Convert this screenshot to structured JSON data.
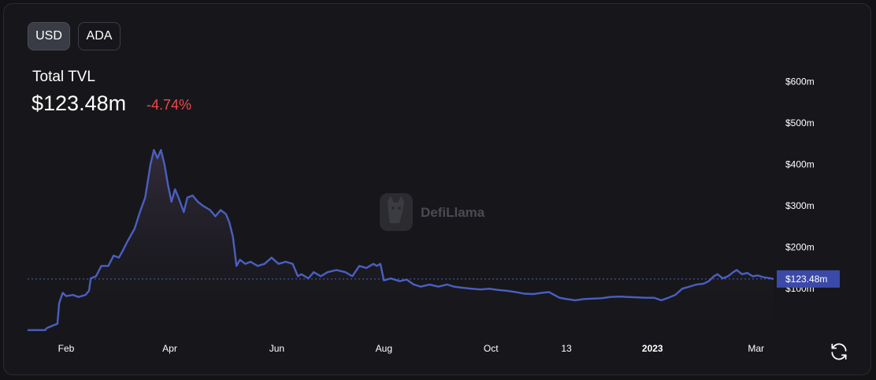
{
  "currency_toggle": {
    "options": [
      "USD",
      "ADA"
    ],
    "active": "USD"
  },
  "summary": {
    "label": "Total TVL",
    "value": "$123.48m",
    "change": "-4.74%"
  },
  "watermark": "DefiLlama",
  "colors": {
    "background": "#17171b",
    "line": "#4a5fc1",
    "negative": "#f04747",
    "price_tag": "#3b4aa8",
    "text": "#ffffff"
  },
  "icons": {
    "refresh": "refresh-icon",
    "logo": "defillama-logo-icon"
  },
  "chart_data": {
    "type": "area",
    "title": "Total TVL",
    "ylabel": "",
    "xlabel": "",
    "y_ticks": [
      {
        "value": 100,
        "label": "$100m"
      },
      {
        "value": 200,
        "label": "$200m"
      },
      {
        "value": 300,
        "label": "$300m"
      },
      {
        "value": 400,
        "label": "$400m"
      },
      {
        "value": 500,
        "label": "$500m"
      },
      {
        "value": 600,
        "label": "$600m"
      }
    ],
    "x_ticks": [
      {
        "date": "2022-02-01",
        "label": "Feb",
        "bold": false
      },
      {
        "date": "2022-04-01",
        "label": "Apr",
        "bold": false
      },
      {
        "date": "2022-06-01",
        "label": "Jun",
        "bold": false
      },
      {
        "date": "2022-08-01",
        "label": "Aug",
        "bold": false
      },
      {
        "date": "2022-10-01",
        "label": "Oct",
        "bold": false
      },
      {
        "date": "2022-11-13",
        "label": "13",
        "bold": false
      },
      {
        "date": "2023-01-01",
        "label": "2023",
        "bold": true
      },
      {
        "date": "2023-03-01",
        "label": "Mar",
        "bold": false
      }
    ],
    "xlim": [
      "2022-01-10",
      "2023-03-11"
    ],
    "ylim": [
      -12,
      683
    ],
    "current_value": {
      "value": 123.48,
      "label": "$123.48m"
    },
    "grid": false,
    "series": [
      {
        "points": [
          [
            "2022-01-10",
            0
          ],
          [
            "2022-01-20",
            0
          ],
          [
            "2022-01-21",
            5
          ],
          [
            "2022-01-25",
            12
          ],
          [
            "2022-01-27",
            15
          ],
          [
            "2022-01-28",
            65
          ],
          [
            "2022-01-30",
            90
          ],
          [
            "2022-02-01",
            82
          ],
          [
            "2022-02-05",
            85
          ],
          [
            "2022-02-08",
            80
          ],
          [
            "2022-02-12",
            85
          ],
          [
            "2022-02-14",
            95
          ],
          [
            "2022-02-15",
            125
          ],
          [
            "2022-02-18",
            130
          ],
          [
            "2022-02-21",
            155
          ],
          [
            "2022-02-25",
            155
          ],
          [
            "2022-02-28",
            180
          ],
          [
            "2022-03-03",
            175
          ],
          [
            "2022-03-05",
            190
          ],
          [
            "2022-03-08",
            215
          ],
          [
            "2022-03-12",
            245
          ],
          [
            "2022-03-15",
            285
          ],
          [
            "2022-03-18",
            320
          ],
          [
            "2022-03-21",
            400
          ],
          [
            "2022-03-23",
            435
          ],
          [
            "2022-03-25",
            415
          ],
          [
            "2022-03-27",
            435
          ],
          [
            "2022-03-29",
            400
          ],
          [
            "2022-03-31",
            350
          ],
          [
            "2022-04-02",
            310
          ],
          [
            "2022-04-04",
            340
          ],
          [
            "2022-04-06",
            320
          ],
          [
            "2022-04-09",
            285
          ],
          [
            "2022-04-11",
            320
          ],
          [
            "2022-04-14",
            325
          ],
          [
            "2022-04-17",
            310
          ],
          [
            "2022-04-20",
            300
          ],
          [
            "2022-04-24",
            290
          ],
          [
            "2022-04-27",
            275
          ],
          [
            "2022-04-30",
            290
          ],
          [
            "2022-05-03",
            280
          ],
          [
            "2022-05-05",
            260
          ],
          [
            "2022-05-07",
            225
          ],
          [
            "2022-05-09",
            155
          ],
          [
            "2022-05-11",
            170
          ],
          [
            "2022-05-14",
            160
          ],
          [
            "2022-05-17",
            165
          ],
          [
            "2022-05-21",
            155
          ],
          [
            "2022-05-25",
            160
          ],
          [
            "2022-05-29",
            175
          ],
          [
            "2022-06-02",
            160
          ],
          [
            "2022-06-06",
            165
          ],
          [
            "2022-06-10",
            160
          ],
          [
            "2022-06-13",
            130
          ],
          [
            "2022-06-15",
            135
          ],
          [
            "2022-06-19",
            125
          ],
          [
            "2022-06-22",
            140
          ],
          [
            "2022-06-26",
            130
          ],
          [
            "2022-06-30",
            140
          ],
          [
            "2022-07-05",
            145
          ],
          [
            "2022-07-10",
            140
          ],
          [
            "2022-07-14",
            130
          ],
          [
            "2022-07-18",
            155
          ],
          [
            "2022-07-22",
            150
          ],
          [
            "2022-07-26",
            160
          ],
          [
            "2022-07-28",
            155
          ],
          [
            "2022-07-30",
            160
          ],
          [
            "2022-08-01",
            120
          ],
          [
            "2022-08-05",
            125
          ],
          [
            "2022-08-10",
            118
          ],
          [
            "2022-08-14",
            122
          ],
          [
            "2022-08-18",
            110
          ],
          [
            "2022-08-22",
            105
          ],
          [
            "2022-08-27",
            110
          ],
          [
            "2022-09-01",
            105
          ],
          [
            "2022-09-06",
            110
          ],
          [
            "2022-09-10",
            105
          ],
          [
            "2022-09-15",
            102
          ],
          [
            "2022-09-20",
            100
          ],
          [
            "2022-09-25",
            98
          ],
          [
            "2022-09-30",
            100
          ],
          [
            "2022-10-05",
            97
          ],
          [
            "2022-10-10",
            95
          ],
          [
            "2022-10-15",
            92
          ],
          [
            "2022-10-20",
            88
          ],
          [
            "2022-10-25",
            87
          ],
          [
            "2022-10-30",
            90
          ],
          [
            "2022-11-03",
            92
          ],
          [
            "2022-11-06",
            85
          ],
          [
            "2022-11-09",
            78
          ],
          [
            "2022-11-13",
            75
          ],
          [
            "2022-11-18",
            72
          ],
          [
            "2022-11-23",
            75
          ],
          [
            "2022-11-28",
            76
          ],
          [
            "2022-12-03",
            77
          ],
          [
            "2022-12-08",
            80
          ],
          [
            "2022-12-13",
            81
          ],
          [
            "2022-12-18",
            80
          ],
          [
            "2022-12-23",
            79
          ],
          [
            "2022-12-28",
            78
          ],
          [
            "2023-01-02",
            78
          ],
          [
            "2023-01-06",
            72
          ],
          [
            "2023-01-10",
            78
          ],
          [
            "2023-01-14",
            85
          ],
          [
            "2023-01-18",
            100
          ],
          [
            "2023-01-22",
            105
          ],
          [
            "2023-01-26",
            110
          ],
          [
            "2023-01-30",
            112
          ],
          [
            "2023-02-02",
            118
          ],
          [
            "2023-02-05",
            130
          ],
          [
            "2023-02-07",
            135
          ],
          [
            "2023-02-10",
            125
          ],
          [
            "2023-02-13",
            130
          ],
          [
            "2023-02-16",
            140
          ],
          [
            "2023-02-18",
            145
          ],
          [
            "2023-02-21",
            135
          ],
          [
            "2023-02-24",
            138
          ],
          [
            "2023-02-27",
            130
          ],
          [
            "2023-03-02",
            132
          ],
          [
            "2023-03-05",
            128
          ],
          [
            "2023-03-08",
            126
          ],
          [
            "2023-03-11",
            123.48
          ]
        ]
      }
    ]
  }
}
